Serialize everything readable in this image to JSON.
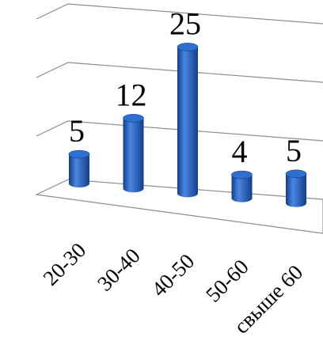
{
  "chart_data": {
    "type": "bar",
    "style": "3d-cylinder",
    "categories": [
      "20-30",
      "30-40",
      "40-50",
      "50-60",
      "свыше 60"
    ],
    "values": [
      5,
      12,
      25,
      4,
      5
    ],
    "data_labels": [
      "5",
      "12",
      "25",
      "4",
      "5"
    ],
    "title": "",
    "xlabel": "",
    "ylabel": "",
    "ylim": [
      0,
      30
    ],
    "grid": true,
    "legend": "none",
    "colors": {
      "bar": "#1f5fbf",
      "bar_dark": "#123f8c",
      "bar_light": "#4a86e0",
      "bar_top": "#2f6fd0",
      "grid": "#8c8c8c",
      "text": "#000000"
    }
  }
}
